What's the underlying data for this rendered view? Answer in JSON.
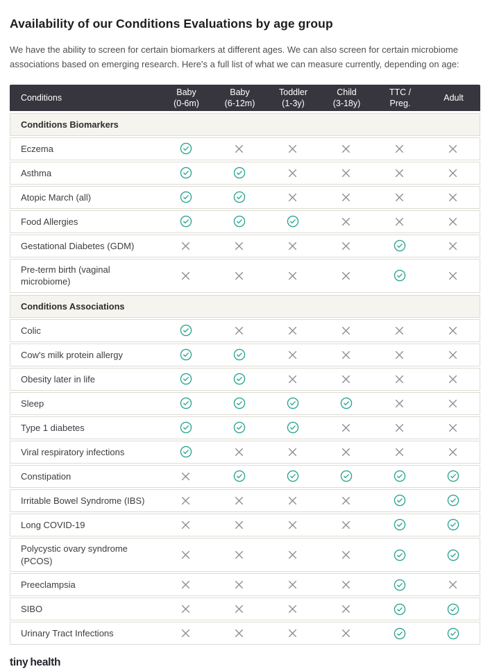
{
  "page": {
    "title": "Availability of our Conditions Evaluations by age group",
    "intro": "We have the ability to screen for certain biomarkers at different ages. We can also screen for certain microbiome associations based on emerging research. Here's a full list of what we can measure currently, depending on age:"
  },
  "colors": {
    "header_bg": "#37363E",
    "accent_teal": "#2BA48E",
    "x_gray": "#8C8C8C",
    "section_bg": "#F5F4EE",
    "row_border": "#DCDBD3"
  },
  "icons": {
    "available": "check-circle-icon",
    "unavailable": "x-icon"
  },
  "table": {
    "header": {
      "conditions_label": "Conditions",
      "age_columns": [
        {
          "id": "baby-0-6m",
          "line1": "Baby",
          "line2": "(0-6m)"
        },
        {
          "id": "baby-6-12m",
          "line1": "Baby",
          "line2": "(6-12m)"
        },
        {
          "id": "toddler-1-3y",
          "line1": "Toddler",
          "line2": "(1-3y)"
        },
        {
          "id": "child-3-18y",
          "line1": "Child",
          "line2": "(3-18y)"
        },
        {
          "id": "ttc-preg",
          "line1": "TTC /",
          "line2": "Preg."
        },
        {
          "id": "adult",
          "line1": "Adult",
          "line2": ""
        }
      ]
    },
    "sections": [
      {
        "label": "Conditions Biomarkers",
        "rows": [
          {
            "label": "Eczema",
            "availability": [
              true,
              false,
              false,
              false,
              false,
              false
            ]
          },
          {
            "label": "Asthma",
            "availability": [
              true,
              true,
              false,
              false,
              false,
              false
            ]
          },
          {
            "label": "Atopic March (all)",
            "availability": [
              true,
              true,
              false,
              false,
              false,
              false
            ]
          },
          {
            "label": "Food Allergies",
            "availability": [
              true,
              true,
              true,
              false,
              false,
              false
            ]
          },
          {
            "label": "Gestational Diabetes (GDM)",
            "availability": [
              false,
              false,
              false,
              false,
              true,
              false
            ]
          },
          {
            "label": "Pre-term birth (vaginal microbiome)",
            "availability": [
              false,
              false,
              false,
              false,
              true,
              false
            ]
          }
        ]
      },
      {
        "label": "Conditions Associations",
        "rows": [
          {
            "label": "Colic",
            "availability": [
              true,
              false,
              false,
              false,
              false,
              false
            ]
          },
          {
            "label": "Cow's milk protein allergy",
            "availability": [
              true,
              true,
              false,
              false,
              false,
              false
            ]
          },
          {
            "label": "Obesity later in life",
            "availability": [
              true,
              true,
              false,
              false,
              false,
              false
            ]
          },
          {
            "label": "Sleep",
            "availability": [
              true,
              true,
              true,
              true,
              false,
              false
            ]
          },
          {
            "label": "Type 1 diabetes",
            "availability": [
              true,
              true,
              true,
              false,
              false,
              false
            ]
          },
          {
            "label": "Viral respiratory infections",
            "availability": [
              true,
              false,
              false,
              false,
              false,
              false
            ]
          },
          {
            "label": "Constipation",
            "availability": [
              false,
              true,
              true,
              true,
              true,
              true
            ]
          },
          {
            "label": "Irritable Bowel Syndrome (IBS)",
            "availability": [
              false,
              false,
              false,
              false,
              true,
              true
            ]
          },
          {
            "label": "Long COVID-19",
            "availability": [
              false,
              false,
              false,
              false,
              true,
              true
            ]
          },
          {
            "label": "Polycystic ovary syndrome (PCOS)",
            "availability": [
              false,
              false,
              false,
              false,
              true,
              true
            ]
          },
          {
            "label": "Preeclampsia",
            "availability": [
              false,
              false,
              false,
              false,
              true,
              false
            ]
          },
          {
            "label": "SIBO",
            "availability": [
              false,
              false,
              false,
              false,
              true,
              true
            ]
          },
          {
            "label": "Urinary Tract Infections",
            "availability": [
              false,
              false,
              false,
              false,
              true,
              true
            ]
          }
        ]
      }
    ]
  },
  "footer": {
    "logo_part1": "tiny",
    "logo_part2": "health"
  }
}
